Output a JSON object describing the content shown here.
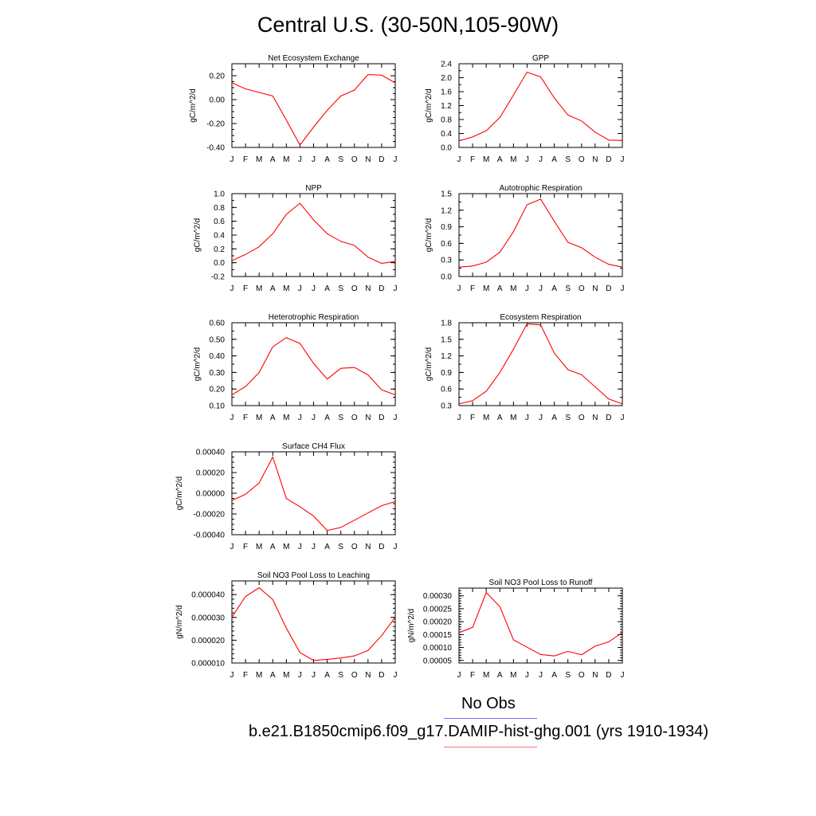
{
  "page": {
    "title": "Central U.S. (30-50N,105-90W)",
    "legend_obs_label": "No Obs",
    "legend_model_label": "b.e21.B1850cmip6.f09_g17.DAMIP-hist-ghg.001 (yrs 1910-1934)",
    "obs_color": "#7070ff",
    "model_color": "#ff0000"
  },
  "chart_data": [
    {
      "type": "line",
      "title": "Net Ecosystem Exchange",
      "ylabel": "gC/m^2/d",
      "x": [
        "J",
        "F",
        "M",
        "A",
        "M",
        "J",
        "J",
        "A",
        "S",
        "O",
        "N",
        "D",
        "J"
      ],
      "ylim": [
        -0.4,
        0.3
      ],
      "yticks": [
        -0.4,
        -0.2,
        0.0,
        0.2
      ],
      "ytick_labels": [
        "-0.40",
        "-0.20",
        "0.00",
        "0.20"
      ],
      "minor_step": 0.05,
      "series": [
        {
          "values": [
            0.14,
            0.09,
            0.06,
            0.03,
            -0.17,
            -0.38,
            -0.23,
            -0.09,
            0.03,
            0.08,
            0.21,
            0.205,
            0.14
          ]
        }
      ]
    },
    {
      "type": "line",
      "title": "GPP",
      "ylabel": "gC/m^2/d",
      "x": [
        "J",
        "F",
        "M",
        "A",
        "M",
        "J",
        "J",
        "A",
        "S",
        "O",
        "N",
        "D",
        "J"
      ],
      "ylim": [
        0.0,
        2.4
      ],
      "yticks": [
        0.0,
        0.4,
        0.8,
        1.2,
        1.6,
        2.0,
        2.4
      ],
      "ytick_labels": [
        "0.0",
        "0.4",
        "0.8",
        "1.2",
        "1.6",
        "2.0",
        "2.4"
      ],
      "minor_step": 0.2,
      "series": [
        {
          "values": [
            0.19,
            0.3,
            0.48,
            0.86,
            1.5,
            2.16,
            2.02,
            1.42,
            0.93,
            0.76,
            0.44,
            0.21,
            0.2
          ]
        }
      ]
    },
    {
      "type": "line",
      "title": "NPP",
      "ylabel": "gC/m^2/d",
      "x": [
        "J",
        "F",
        "M",
        "A",
        "M",
        "J",
        "J",
        "A",
        "S",
        "O",
        "N",
        "D",
        "J"
      ],
      "ylim": [
        -0.2,
        1.0
      ],
      "yticks": [
        -0.2,
        0.0,
        0.2,
        0.4,
        0.6,
        0.8,
        1.0
      ],
      "ytick_labels": [
        "-0.2",
        "0.0",
        "0.2",
        "0.4",
        "0.6",
        "0.8",
        "1.0"
      ],
      "minor_step": 0.1,
      "series": [
        {
          "values": [
            0.03,
            0.12,
            0.23,
            0.42,
            0.7,
            0.86,
            0.62,
            0.42,
            0.31,
            0.25,
            0.08,
            -0.01,
            0.02
          ]
        }
      ]
    },
    {
      "type": "line",
      "title": "Autotrophic Respiration",
      "ylabel": "gC/m^2/d",
      "x": [
        "J",
        "F",
        "M",
        "A",
        "M",
        "J",
        "J",
        "A",
        "S",
        "O",
        "N",
        "D",
        "J"
      ],
      "ylim": [
        0.0,
        1.5
      ],
      "yticks": [
        0.0,
        0.3,
        0.6,
        0.9,
        1.2,
        1.5
      ],
      "ytick_labels": [
        "0.0",
        "0.3",
        "0.6",
        "0.9",
        "1.2",
        "1.5"
      ],
      "minor_step": 0.15,
      "series": [
        {
          "values": [
            0.17,
            0.19,
            0.26,
            0.44,
            0.81,
            1.3,
            1.4,
            1.0,
            0.62,
            0.52,
            0.35,
            0.22,
            0.17
          ]
        }
      ]
    },
    {
      "type": "line",
      "title": "Heterotrophic Respiration",
      "ylabel": "gC/m^2/d",
      "x": [
        "J",
        "F",
        "M",
        "A",
        "M",
        "J",
        "J",
        "A",
        "S",
        "O",
        "N",
        "D",
        "J"
      ],
      "ylim": [
        0.1,
        0.6
      ],
      "yticks": [
        0.1,
        0.2,
        0.3,
        0.4,
        0.5,
        0.6
      ],
      "ytick_labels": [
        "0.10",
        "0.20",
        "0.30",
        "0.40",
        "0.50",
        "0.60"
      ],
      "minor_step": 0.05,
      "series": [
        {
          "values": [
            0.165,
            0.215,
            0.3,
            0.455,
            0.51,
            0.475,
            0.355,
            0.26,
            0.325,
            0.33,
            0.285,
            0.195,
            0.165
          ]
        }
      ]
    },
    {
      "type": "line",
      "title": "Ecosystem Respiration",
      "ylabel": "gC/m^2/d",
      "x": [
        "J",
        "F",
        "M",
        "A",
        "M",
        "J",
        "J",
        "A",
        "S",
        "O",
        "N",
        "D",
        "J"
      ],
      "ylim": [
        0.3,
        1.8
      ],
      "yticks": [
        0.3,
        0.6,
        0.9,
        1.2,
        1.5,
        1.8
      ],
      "ytick_labels": [
        "0.3",
        "0.6",
        "0.9",
        "1.2",
        "1.5",
        "1.8"
      ],
      "minor_step": 0.15,
      "series": [
        {
          "values": [
            0.33,
            0.39,
            0.56,
            0.9,
            1.32,
            1.78,
            1.76,
            1.25,
            0.95,
            0.86,
            0.64,
            0.42,
            0.33
          ]
        }
      ]
    },
    {
      "type": "line",
      "title": "Surface CH4 Flux",
      "ylabel": "gC/m^2/d",
      "x": [
        "J",
        "F",
        "M",
        "A",
        "M",
        "J",
        "J",
        "A",
        "S",
        "O",
        "N",
        "D",
        "J"
      ],
      "ylim": [
        -0.0004,
        0.0004
      ],
      "yticks": [
        -0.0004,
        -0.0002,
        0.0,
        0.0002,
        0.0004
      ],
      "ytick_labels": [
        "-0.00040",
        "-0.00020",
        "0.00000",
        "0.00020",
        "0.00040"
      ],
      "minor_step": 5e-05,
      "series": [
        {
          "values": [
            -7e-05,
            -1e-05,
            0.0001,
            0.00035,
            -5e-05,
            -0.00013,
            -0.00022,
            -0.00036,
            -0.00033,
            -0.00026,
            -0.00019,
            -0.00012,
            -8e-05
          ]
        }
      ]
    },
    {
      "type": "line",
      "title": "Soil NO3 Pool Loss to Leaching",
      "ylabel": "gN/m^2/d",
      "x": [
        "J",
        "F",
        "M",
        "A",
        "M",
        "J",
        "J",
        "A",
        "S",
        "O",
        "N",
        "D",
        "J"
      ],
      "ylim": [
        1e-05,
        4.6e-05
      ],
      "yticks": [
        1e-05,
        2e-05,
        3e-05,
        4e-05
      ],
      "ytick_labels": [
        "0.000010",
        "0.000020",
        "0.000030",
        "0.000040"
      ],
      "minor_step": 2e-06,
      "series": [
        {
          "values": [
            3.01e-05,
            3.92e-05,
            4.3e-05,
            3.78e-05,
            2.53e-05,
            1.46e-05,
            1.11e-05,
            1.16e-05,
            1.22e-05,
            1.31e-05,
            1.55e-05,
            2.2e-05,
            3.01e-05
          ]
        }
      ]
    },
    {
      "type": "line",
      "title": "Soil NO3 Pool Loss to Runoff",
      "ylabel": "gN/m^2/d",
      "x": [
        "J",
        "F",
        "M",
        "A",
        "M",
        "J",
        "J",
        "A",
        "S",
        "O",
        "N",
        "D",
        "J"
      ],
      "ylim": [
        4e-05,
        0.00033
      ],
      "yticks": [
        5e-05,
        0.0001,
        0.00015,
        0.0002,
        0.00025,
        0.0003
      ],
      "ytick_labels": [
        "0.00005",
        "0.00010",
        "0.00015",
        "0.00020",
        "0.00025",
        "0.00030"
      ],
      "minor_step": 1e-05,
      "series": [
        {
          "values": [
            0.000158,
            0.000178,
            0.000313,
            0.000258,
            0.00013,
            0.000101,
            7.3e-05,
            6.7e-05,
            8.5e-05,
            7.2e-05,
            0.000105,
            0.000122,
            0.000158
          ]
        }
      ]
    }
  ]
}
